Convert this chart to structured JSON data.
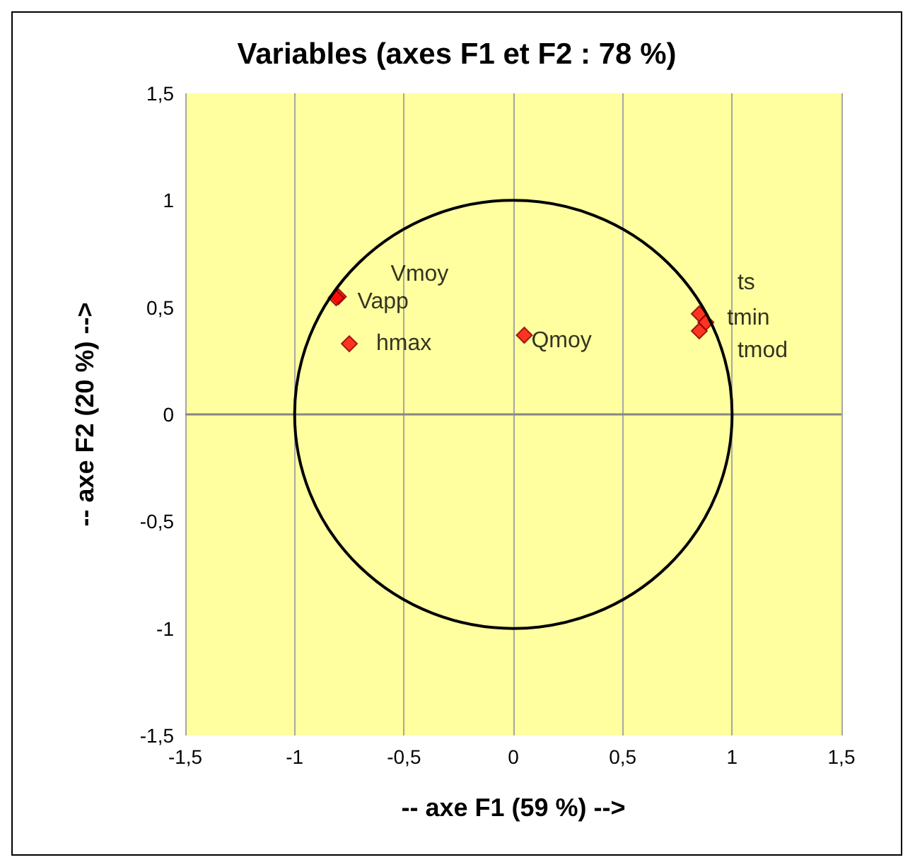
{
  "chart_data": {
    "type": "scatter",
    "title": "Variables (axes F1 et F2 : 78 %)",
    "xlabel": "-- axe F1 (59 %) -->",
    "ylabel": "-- axe F2 (20 %) -->",
    "xlim": [
      -1.5,
      1.5
    ],
    "ylim": [
      -1.5,
      1.5
    ],
    "xticks": [
      {
        "value": -1.5,
        "label": "-1,5"
      },
      -1,
      {
        "value": -0.5,
        "label": "-0,5"
      },
      0,
      {
        "value": 0.5,
        "label": "0,5"
      },
      1,
      {
        "value": 1.5,
        "label": "1,5"
      }
    ],
    "yticks": [
      {
        "value": -1.5,
        "label": "-1,5"
      },
      -1,
      {
        "value": -0.5,
        "label": "-0,5"
      },
      0,
      {
        "value": 0.5,
        "label": "0,5"
      },
      1,
      {
        "value": 1.5,
        "label": "1,5"
      }
    ],
    "grid": "x",
    "ref_lines": [
      {
        "axis": "y",
        "value": 0,
        "color": "#868686"
      }
    ],
    "series": [
      {
        "color": "#ff0000",
        "marker": "diamond",
        "x": [
          -0.8,
          -0.81,
          -0.75,
          0.05,
          0.85,
          0.88,
          0.85
        ],
        "values": [
          0.55,
          0.545,
          0.33,
          0.37,
          0.47,
          0.43,
          0.39
        ]
      }
    ],
    "annotations": [
      {
        "text": "Vmoy",
        "x": -0.8,
        "y": 0.55
      },
      {
        "text": "Vapp",
        "x": -0.81,
        "y": 0.545
      },
      {
        "text": "hmax",
        "x": -0.75,
        "y": 0.33
      },
      {
        "text": "Qmoy",
        "x": 0.05,
        "y": 0.37
      },
      {
        "text": "ts",
        "x": 0.85,
        "y": 0.47
      },
      {
        "text": "tmin",
        "x": 0.88,
        "y": 0.43
      },
      {
        "text": "tmod",
        "x": 0.85,
        "y": 0.39
      }
    ]
  }
}
